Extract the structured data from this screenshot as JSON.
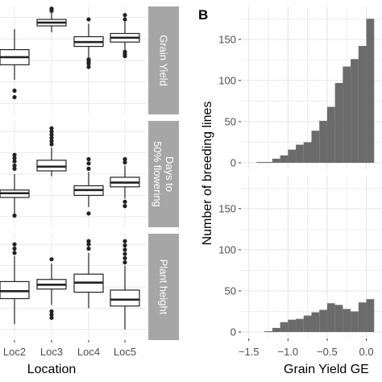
{
  "colors": {
    "panel_bg": "#ffffff",
    "grid": "#e3e3e3",
    "strip_bg": "#a6a6a6",
    "strip_text": "#ffffff",
    "box_stroke": "#222222",
    "bar_fill": "#6b6b6b",
    "axis_text": "#4d4d4d"
  },
  "chart_data": [
    {
      "type": "boxplot",
      "panel_label": "",
      "xlabel": "Location",
      "categories": [
        "Loc2",
        "Loc3",
        "Loc4",
        "Loc5"
      ],
      "facets": [
        {
          "strip_label": "Grain Yield",
          "ylim": [
            0,
            100
          ],
          "boxes": [
            {
              "category": "Loc2",
              "low": 32,
              "q1": 46,
              "median": 53,
              "q3": 60,
              "high": 79,
              "outliers": [
                22,
                16
              ]
            },
            {
              "category": "Loc3",
              "low": 76,
              "q1": 82,
              "median": 85,
              "q3": 88,
              "high": 94,
              "outliers": [
                96,
                98
              ]
            },
            {
              "category": "Loc4",
              "low": 53,
              "q1": 63,
              "median": 67,
              "q3": 72,
              "high": 84,
              "outliers": [
                44,
                47,
                49,
                51,
                88
              ]
            },
            {
              "category": "Loc5",
              "low": 59,
              "q1": 67,
              "median": 71,
              "q3": 75,
              "high": 86,
              "outliers": [
                54,
                56,
                58,
                88,
                92
              ]
            }
          ]
        },
        {
          "strip_label": "Days to 50% flowering",
          "ylim": [
            0,
            100
          ],
          "boxes": [
            {
              "category": "Loc2",
              "low": 13,
              "q1": 28,
              "median": 32,
              "q3": 35,
              "high": 50,
              "outliers": [
                11,
                55,
                58,
                62,
                65,
                68
              ]
            },
            {
              "category": "Loc3",
              "low": 48,
              "q1": 53,
              "median": 57,
              "q3": 63,
              "high": 75,
              "outliers": [
                78,
                81,
                84,
                87,
                90,
                93
              ]
            },
            {
              "category": "Loc4",
              "low": 19,
              "q1": 30,
              "median": 35,
              "q3": 39,
              "high": 52,
              "outliers": [
                13,
                55,
                60,
                64
              ]
            },
            {
              "category": "Loc5",
              "low": 27,
              "q1": 38,
              "median": 42,
              "q3": 47,
              "high": 58,
              "outliers": [
                24,
                20,
                61,
                64
              ]
            }
          ]
        },
        {
          "strip_label": "Plant height",
          "ylim": [
            0,
            100
          ],
          "boxes": [
            {
              "category": "Loc2",
              "low": 15,
              "q1": 39,
              "median": 46,
              "q3": 55,
              "high": 79,
              "outliers": [
                82,
                86,
                90
              ]
            },
            {
              "category": "Loc3",
              "low": 33,
              "q1": 48,
              "median": 52,
              "q3": 57,
              "high": 72,
              "outliers": [
                21,
                24,
                27,
                76
              ]
            },
            {
              "category": "Loc4",
              "low": 30,
              "q1": 45,
              "median": 54,
              "q3": 62,
              "high": 82,
              "outliers": [
                86,
                90,
                93
              ]
            },
            {
              "category": "Loc5",
              "low": 10,
              "q1": 32,
              "median": 38,
              "q3": 47,
              "high": 70,
              "outliers": [
                73,
                77,
                81,
                85,
                89,
                93
              ]
            }
          ]
        }
      ]
    },
    {
      "type": "bar",
      "subtype": "histogram",
      "panel_label": "B",
      "ylabel": "Number of breeding lines",
      "xlabel": "Grain Yield GE",
      "xlim": [
        -1.6,
        0.2
      ],
      "xticks": [
        -1.5,
        -1.0,
        -0.5,
        0.0
      ],
      "xtick_labels": [
        "−1.5",
        "−1.0",
        "−0.5",
        "0.0"
      ],
      "bin_edges": [
        -1.4,
        -1.3,
        -1.2,
        -1.1,
        -1.0,
        -0.9,
        -0.8,
        -0.7,
        -0.6,
        -0.5,
        -0.4,
        -0.3,
        -0.2,
        -0.1,
        0.0,
        0.1
      ],
      "facets": [
        {
          "ylim": [
            0,
            190
          ],
          "yticks": [
            0,
            50,
            100,
            150
          ],
          "counts": [
            1,
            1,
            5,
            9,
            16,
            22,
            25,
            39,
            51,
            68,
            97,
            117,
            126,
            142,
            175
          ]
        },
        {
          "ylim": [
            0,
            190
          ],
          "yticks": [
            0,
            50,
            100,
            150
          ],
          "counts": [
            0,
            1,
            5,
            12,
            15,
            16,
            20,
            24,
            27,
            35,
            33,
            28,
            25,
            36,
            40
          ]
        }
      ]
    }
  ]
}
